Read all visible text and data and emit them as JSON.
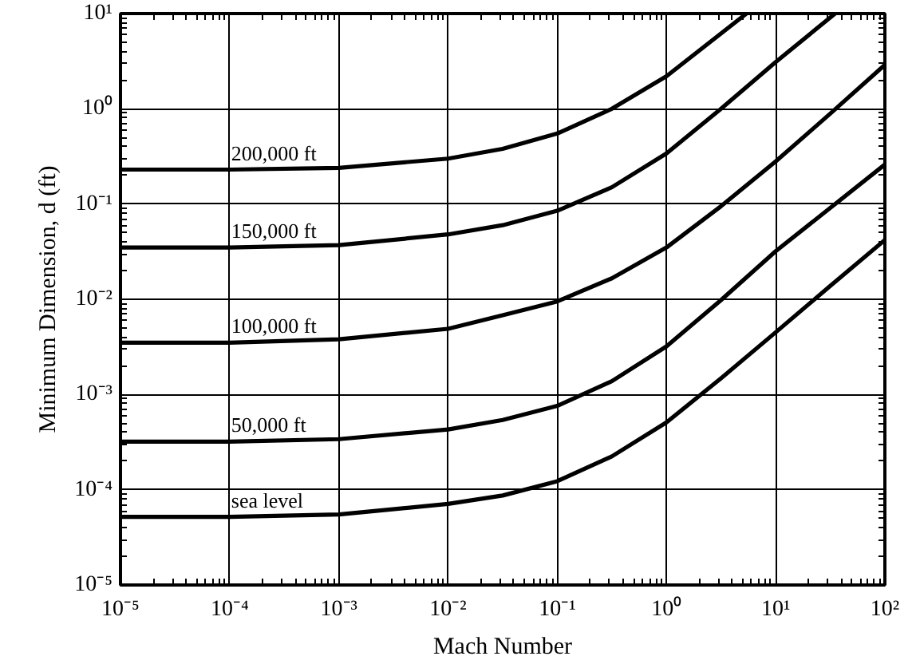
{
  "chart_data": {
    "type": "line",
    "xlabel": "Mach Number",
    "ylabel": "Minimum Dimension, d (ft)",
    "log": "xy",
    "grid": true,
    "marker": "none",
    "line_style": "solid",
    "xlim": [
      1e-05,
      100
    ],
    "ylim": [
      1e-05,
      10
    ],
    "xticks": [
      {
        "value": 1e-05,
        "label": "10⁻⁵"
      },
      {
        "value": 0.0001,
        "label": "10⁻⁴"
      },
      {
        "value": 0.001,
        "label": "10⁻³"
      },
      {
        "value": 0.01,
        "label": "10⁻²"
      },
      {
        "value": 0.1,
        "label": "10⁻¹"
      },
      {
        "value": 1,
        "label": "10⁰"
      },
      {
        "value": 10,
        "label": "10¹"
      },
      {
        "value": 100,
        "label": "10²"
      }
    ],
    "yticks": [
      {
        "value": 1e-05,
        "label": "10⁻⁵"
      },
      {
        "value": 0.0001,
        "label": "10⁻⁴"
      },
      {
        "value": 0.001,
        "label": "10⁻³"
      },
      {
        "value": 0.01,
        "label": "10⁻²"
      },
      {
        "value": 0.1,
        "label": "10⁻¹"
      },
      {
        "value": 1,
        "label": "10⁰"
      },
      {
        "value": 10,
        "label": "10¹"
      }
    ],
    "series": [
      {
        "color": "#000000",
        "x": [
          1e-05,
          0.0001,
          0.001,
          0.01,
          0.0316,
          0.1,
          0.316,
          1,
          3.16,
          10,
          31.6,
          100
        ],
        "values": [
          5.2e-05,
          5.2e-05,
          5.5e-05,
          7.1e-05,
          8.7e-05,
          0.000123,
          0.000224,
          0.00051,
          0.00148,
          0.0045,
          0.0138,
          0.042
        ]
      },
      {
        "color": "#000000",
        "x": [
          1e-05,
          0.0001,
          0.001,
          0.01,
          0.0316,
          0.1,
          0.316,
          1,
          3.16,
          10,
          31.6,
          100
        ],
        "values": [
          0.00032,
          0.00032,
          0.00034,
          0.00043,
          0.00054,
          0.00076,
          0.00138,
          0.0032,
          0.0098,
          0.032,
          0.091,
          0.26
        ]
      },
      {
        "color": "#000000",
        "x": [
          1e-05,
          0.0001,
          0.001,
          0.01,
          0.0316,
          0.1,
          0.316,
          1,
          3.16,
          10,
          31.6,
          100
        ],
        "values": [
          0.0035,
          0.0035,
          0.0038,
          0.0049,
          0.0068,
          0.0095,
          0.0166,
          0.035,
          0.095,
          0.28,
          0.89,
          2.9
        ]
      },
      {
        "color": "#000000",
        "x": [
          1e-05,
          0.0001,
          0.001,
          0.01,
          0.0316,
          0.1,
          0.316,
          1,
          3.16,
          10,
          35
        ],
        "values": [
          0.035,
          0.035,
          0.037,
          0.048,
          0.06,
          0.085,
          0.15,
          0.34,
          1.0,
          3.1,
          10
        ]
      },
      {
        "color": "#000000",
        "x": [
          1e-05,
          0.0001,
          0.001,
          0.01,
          0.0316,
          0.1,
          0.316,
          1,
          5.4
        ],
        "values": [
          0.23,
          0.23,
          0.24,
          0.3,
          0.38,
          0.55,
          1.0,
          2.2,
          10
        ]
      }
    ],
    "annotations": [
      "sea level",
      "50,000 ft",
      "100,000 ft",
      "150,000 ft",
      "200,000 ft"
    ]
  }
}
